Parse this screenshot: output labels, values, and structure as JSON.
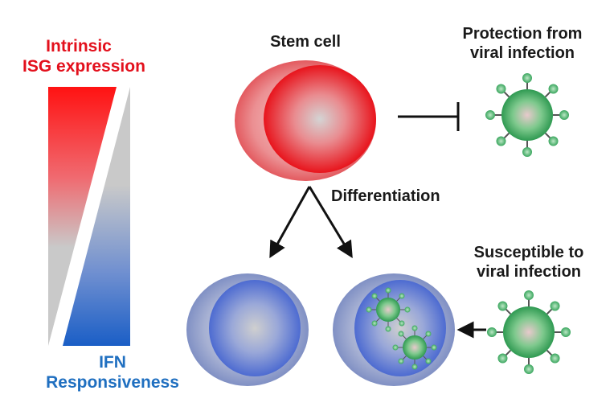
{
  "labels": {
    "intrinsic_line1": "Intrinsic",
    "intrinsic_line2": "ISG expression",
    "ifn_line1": "IFN",
    "ifn_line2": "Responsiveness",
    "stem_cell": "Stem cell",
    "protection_line1": "Protection from",
    "protection_line2": "viral infection",
    "differentiation": "Differentiation",
    "susceptible_line1": "Susceptible to",
    "susceptible_line2": "viral infection"
  },
  "colors": {
    "isg_red": "#e3101c",
    "ifn_blue": "#1f6fc0",
    "virus_green": "#3aa65e",
    "neutral_gray": "#c8c8c8",
    "differentiated_cell_blue": "#5b78c9"
  },
  "icons": [
    "stem-cell-icon",
    "virus-icon",
    "differentiated-cell-icon",
    "infected-cell-icon",
    "inhibition-arrow-icon",
    "arrow-icon"
  ]
}
